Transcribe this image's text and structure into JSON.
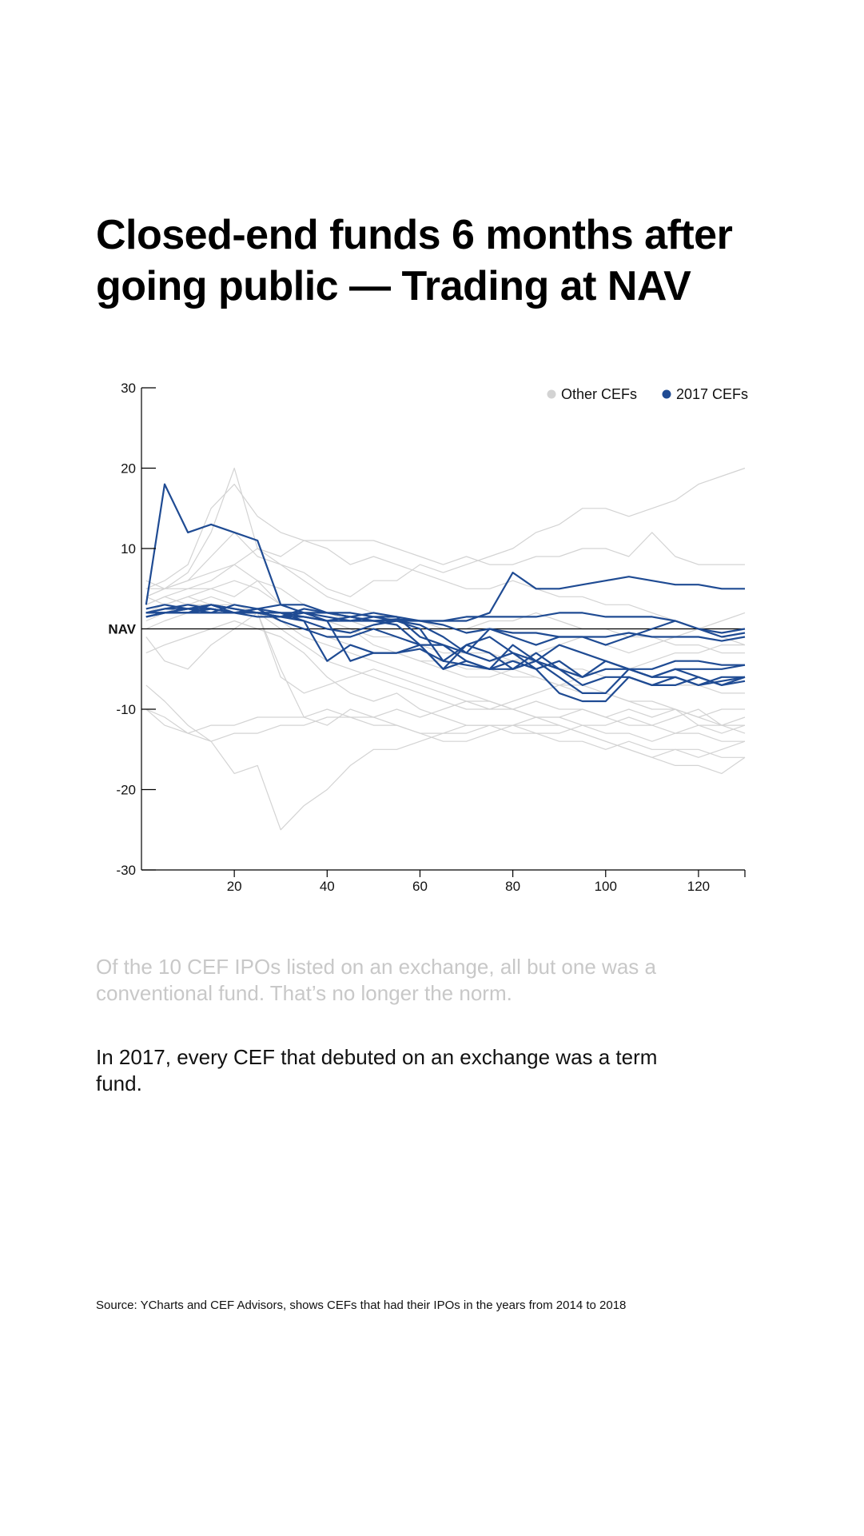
{
  "title": "Closed-end funds 6 months after going public — Trading at NAV",
  "paragraphs": [
    "Of the 10 CEF IPOs listed on an exchange, all but one was a conventional fund. That’s no longer the norm.",
    "In 2017, every CEF that debuted on an exchange was a term fund."
  ],
  "source": "Source: YCharts and CEF Advisors, shows CEFs that had their IPOs in the years from 2014 to 2018",
  "colors": {
    "highlight": "#1f4b93",
    "other": "#d3d3d3",
    "muted_text": "#c8c8c8"
  },
  "chart_data": {
    "type": "line",
    "title": "Closed-end funds 6 months after going public — Trading at NAV",
    "xlabel": "",
    "ylabel": "",
    "xlim": [
      0,
      130
    ],
    "ylim": [
      -30,
      30
    ],
    "x_ticks": [
      20,
      40,
      60,
      80,
      100,
      120
    ],
    "y_ticks": [
      30,
      20,
      10,
      0,
      -10,
      -20,
      -30
    ],
    "y_tick_labels": [
      "30",
      "20",
      "10",
      "NAV",
      "-10",
      "-20",
      "-30"
    ],
    "x_tick_labels": [
      "20",
      "40",
      "60",
      "80",
      "100",
      "120"
    ],
    "reference_line": {
      "y": 0,
      "label": "NAV"
    },
    "grid": false,
    "legend": {
      "placement": "top-right",
      "entries": [
        "Other CEFs",
        "2017 CEFs"
      ]
    },
    "x": [
      1,
      5,
      10,
      15,
      20,
      25,
      30,
      35,
      40,
      45,
      50,
      55,
      60,
      65,
      70,
      75,
      80,
      85,
      90,
      95,
      100,
      105,
      110,
      115,
      120,
      125,
      130
    ],
    "series": [
      {
        "name": "Other CEFs",
        "group": "other",
        "values": [
          4,
          5,
          7,
          12,
          20,
          10,
          8,
          7,
          5,
          4,
          6,
          6,
          8,
          7,
          8,
          9,
          10,
          12,
          13,
          15,
          15,
          14,
          15,
          16,
          18,
          19,
          20
        ]
      },
      {
        "name": "Other CEFs",
        "group": "other",
        "values": [
          -10,
          -11,
          -13,
          -14,
          -18,
          -17,
          -25,
          -22,
          -20,
          -17,
          -15,
          -15,
          -14,
          -13,
          -12,
          -12,
          -12,
          -12,
          -12,
          -13,
          -14,
          -15,
          -16,
          -15,
          -15,
          -16,
          -16
        ]
      },
      {
        "name": "Other CEFs",
        "group": "other",
        "values": [
          -1,
          -4,
          -5,
          -2,
          0,
          2,
          -5,
          -11,
          -12,
          -10,
          -11,
          -12,
          -13,
          -13,
          -13,
          -12,
          -12,
          -13,
          -13,
          -12,
          -13,
          -13,
          -14,
          -13,
          -13,
          -14,
          -14
        ]
      },
      {
        "name": "Other CEFs",
        "group": "other",
        "values": [
          -10,
          -12,
          -13,
          -12,
          -12,
          -11,
          -11,
          -11,
          -10,
          -11,
          -12,
          -12,
          -13,
          -14,
          -14,
          -13,
          -12,
          -11,
          -11,
          -12,
          -12,
          -11,
          -12,
          -11,
          -10,
          -12,
          -11
        ]
      },
      {
        "name": "Other CEFs",
        "group": "other",
        "values": [
          5,
          6,
          8,
          15,
          18,
          14,
          12,
          11,
          10,
          8,
          9,
          8,
          7,
          6,
          5,
          5,
          6,
          5,
          4,
          4,
          3,
          3,
          2,
          1,
          0,
          -1,
          -2
        ]
      },
      {
        "name": "Other CEFs",
        "group": "other",
        "values": [
          3,
          4,
          5,
          6,
          8,
          10,
          9,
          11,
          11,
          11,
          11,
          10,
          9,
          8,
          9,
          8,
          8,
          9,
          9,
          10,
          10,
          9,
          12,
          9,
          8,
          8,
          8
        ]
      },
      {
        "name": "Other CEFs",
        "group": "other",
        "values": [
          6,
          5,
          5,
          5,
          4,
          6,
          3,
          2,
          1,
          0,
          -2,
          -3,
          -4,
          -5,
          -6,
          -6,
          -5,
          -6,
          -7,
          -7,
          -8,
          -9,
          -10,
          -10,
          -12,
          -12,
          -13
        ]
      },
      {
        "name": "Other CEFs",
        "group": "other",
        "values": [
          0,
          1,
          2,
          3,
          2,
          2,
          -6,
          -8,
          -7,
          -6,
          -5,
          -6,
          -7,
          -8,
          -9,
          -10,
          -10,
          -11,
          -11,
          -10,
          -11,
          -12,
          -12,
          -13,
          -12,
          -13,
          -12
        ]
      },
      {
        "name": "Other CEFs",
        "group": "other",
        "values": [
          4,
          3,
          4,
          3,
          3,
          2,
          1,
          0,
          -1,
          -2,
          -3,
          -3,
          -4,
          -4,
          -5,
          -5,
          -6,
          -6,
          -7,
          -8,
          -8,
          -9,
          -9,
          -10,
          -11,
          -10,
          -10
        ]
      },
      {
        "name": "Other CEFs",
        "group": "other",
        "values": [
          2,
          3,
          4,
          5,
          6,
          5,
          3,
          2,
          1,
          0,
          -1,
          -1,
          -2,
          -2,
          -3,
          -3,
          -4,
          -4,
          -5,
          -5,
          -6,
          -6,
          -7,
          -7,
          -7,
          -8,
          -8
        ]
      },
      {
        "name": "Other CEFs",
        "group": "other",
        "values": [
          -7,
          -9,
          -12,
          -14,
          -13,
          -13,
          -12,
          -12,
          -11,
          -11,
          -11,
          -10,
          -11,
          -10,
          -9,
          -9,
          -10,
          -9,
          -10,
          -10,
          -11,
          -10,
          -11,
          -10,
          -11,
          -12,
          -12
        ]
      },
      {
        "name": "Other CEFs",
        "group": "other",
        "values": [
          5,
          5,
          6,
          7,
          8,
          6,
          5,
          3,
          2,
          1,
          0,
          -1,
          -2,
          -3,
          -3,
          -4,
          -4,
          -3,
          -2,
          -1,
          -2,
          -3,
          -2,
          -1,
          0,
          1,
          2
        ]
      },
      {
        "name": "Other CEFs",
        "group": "other",
        "values": [
          3,
          4,
          3,
          3,
          2,
          2,
          1,
          -1,
          -2,
          -3,
          -4,
          -5,
          -6,
          -7,
          -8,
          -9,
          -10,
          -11,
          -12,
          -13,
          -14,
          -15,
          -16,
          -17,
          -17,
          -18,
          -16
        ]
      },
      {
        "name": "Other CEFs",
        "group": "other",
        "values": [
          1,
          2,
          3,
          4,
          3,
          2,
          0,
          -2,
          -4,
          -5,
          -6,
          -7,
          -8,
          -9,
          -10,
          -10,
          -9,
          -8,
          -7,
          -6,
          -5,
          -5,
          -4,
          -3,
          -3,
          -2,
          -2
        ]
      },
      {
        "name": "Other CEFs",
        "group": "other",
        "values": [
          4,
          5,
          6,
          9,
          12,
          9,
          8,
          6,
          4,
          3,
          2,
          1,
          1,
          0,
          0,
          1,
          1,
          2,
          1,
          0,
          0,
          -1,
          -1,
          -2,
          -2,
          -3,
          -3
        ]
      },
      {
        "name": "Other CEFs",
        "group": "other",
        "values": [
          -3,
          -2,
          -1,
          0,
          1,
          0,
          -1,
          -3,
          -6,
          -8,
          -9,
          -8,
          -10,
          -11,
          -12,
          -12,
          -13,
          -13,
          -14,
          -14,
          -15,
          -14,
          -15,
          -15,
          -16,
          -15,
          -14
        ]
      },
      {
        "name": "2017 CEFs",
        "group": "highlight",
        "values": [
          3,
          18,
          12,
          13,
          12,
          11,
          3,
          3,
          2,
          1.5,
          1,
          1,
          0.5,
          -1,
          -3,
          -4,
          -3,
          -5,
          -4,
          -6,
          -5,
          -5,
          -6,
          -6,
          -7,
          -6,
          -6
        ]
      },
      {
        "name": "2017 CEFs",
        "group": "highlight",
        "values": [
          2,
          2.5,
          2.5,
          3,
          2,
          2,
          1.5,
          1.5,
          1,
          1,
          1,
          1.2,
          1,
          1,
          1,
          2,
          7,
          5,
          5,
          5.5,
          6,
          6.5,
          6,
          5.5,
          5.5,
          5,
          5
        ]
      },
      {
        "name": "2017 CEFs",
        "group": "highlight",
        "values": [
          1.5,
          2,
          2.5,
          2.5,
          2,
          2.5,
          3,
          2,
          1.5,
          1,
          1.5,
          1.5,
          1,
          1,
          1.5,
          1.5,
          1.5,
          1.5,
          2,
          2,
          1.5,
          1.5,
          1.5,
          1,
          0,
          -0.5,
          0
        ]
      },
      {
        "name": "2017 CEFs",
        "group": "highlight",
        "values": [
          2,
          2,
          2,
          2.5,
          2,
          2,
          1.5,
          2.5,
          2,
          2,
          1.5,
          1,
          1,
          0.5,
          -0.5,
          0,
          -0.5,
          -0.5,
          -1,
          -1,
          -1,
          -0.5,
          -1,
          -1,
          -1,
          -1.5,
          -1
        ]
      },
      {
        "name": "2017 CEFs",
        "group": "highlight",
        "values": [
          2.5,
          3,
          2.5,
          2,
          2,
          1.5,
          1.5,
          1,
          -4,
          -2,
          -3,
          -3,
          -2.5,
          -4,
          -4.5,
          -5,
          -5,
          -4,
          -5,
          -7,
          -6,
          -6,
          -7,
          -6,
          -7,
          -6.5,
          -6
        ]
      },
      {
        "name": "2017 CEFs",
        "group": "highlight",
        "values": [
          2,
          2,
          2.5,
          3,
          2.5,
          2,
          1.5,
          2,
          1,
          -4,
          -3,
          -3,
          -2,
          -5,
          -4,
          -5,
          -2,
          -4,
          -6,
          -8,
          -8,
          -5,
          -6,
          -5,
          -5,
          -5,
          -4.5
        ]
      },
      {
        "name": "2017 CEFs",
        "group": "highlight",
        "values": [
          1.5,
          2,
          2,
          2,
          3,
          2.5,
          1,
          0,
          -1,
          -1,
          0,
          -1,
          -2,
          -2,
          -4,
          -5,
          -4,
          -5,
          -8,
          -9,
          -9,
          -6,
          -7,
          -7,
          -6,
          -7,
          -6
        ]
      },
      {
        "name": "2017 CEFs",
        "group": "highlight",
        "values": [
          2,
          2.5,
          3,
          2.5,
          2,
          2,
          2,
          2,
          2,
          1.5,
          1,
          0.5,
          -2,
          -5,
          -2,
          -1,
          -3,
          -4,
          -2,
          -3,
          -4,
          -5,
          -5,
          -4,
          -4,
          -4.5,
          -4.5
        ]
      },
      {
        "name": "2017 CEFs",
        "group": "highlight",
        "values": [
          2,
          2,
          2,
          3,
          2.5,
          2,
          2,
          1.5,
          1,
          1.5,
          2,
          1.5,
          -1,
          -2,
          -3,
          0,
          -1,
          -2,
          -1,
          -1,
          -2,
          -1,
          0,
          1,
          0,
          -1,
          -0.5
        ]
      },
      {
        "name": "2017 CEFs",
        "group": "highlight",
        "values": [
          1.5,
          2,
          2,
          2.5,
          2,
          2.5,
          2,
          1,
          0,
          -0.5,
          0.5,
          1,
          0,
          -4,
          -2,
          -3,
          -5,
          -3,
          -5,
          -6,
          -4,
          -5,
          -6,
          -5,
          -6,
          -7,
          -6.5
        ]
      }
    ]
  }
}
